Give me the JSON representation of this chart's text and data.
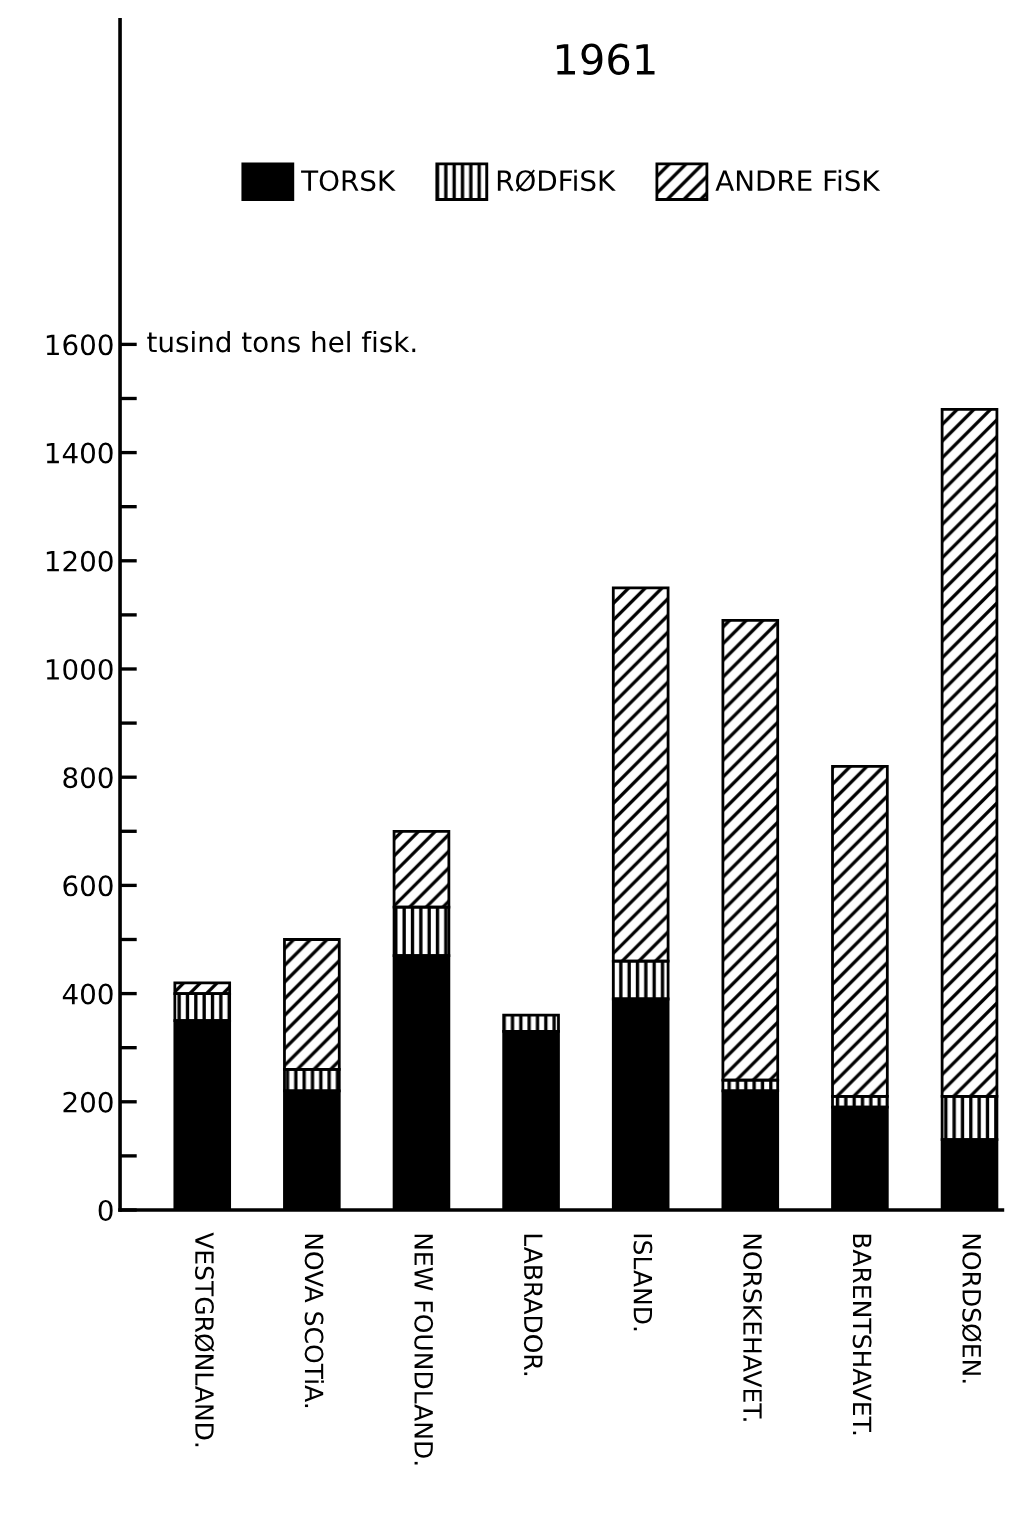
{
  "chart_data": {
    "type": "bar",
    "title": "1961",
    "ylabel": "tusind tons hel fisk.",
    "stacked": true,
    "legend": "top",
    "grid": false,
    "categories": [
      "VESTGRØNLAND.",
      "NOVA SCOTiA.",
      "NEW FOUNDLAND.",
      "LABRADOR.",
      "ISLAND.",
      "NORSKEHAVET.",
      "BARENTSHAVET.",
      "NORDSØEN."
    ],
    "series": [
      {
        "name": "TORSK",
        "color": "#000000",
        "values": [
          350,
          220,
          470,
          330,
          390,
          220,
          190,
          130
        ]
      },
      {
        "name": "RØDFiSK",
        "color": "#000000",
        "values": [
          50,
          40,
          90,
          30,
          70,
          20,
          20,
          80
        ]
      },
      {
        "name": "ANDRE FiSK",
        "color": "#000000",
        "values": [
          20,
          240,
          140,
          null,
          690,
          850,
          610,
          1270
        ]
      }
    ],
    "ylim": [
      0,
      2200
    ],
    "yticks": [
      0,
      {
        "value": 100,
        "label": null
      },
      200,
      {
        "value": 300,
        "label": null
      },
      400,
      {
        "value": 500,
        "label": null
      },
      600,
      {
        "value": 700,
        "label": null
      },
      800,
      {
        "value": 900,
        "label": null
      },
      1000,
      {
        "value": 1100,
        "label": null
      },
      1200,
      {
        "value": 1300,
        "label": null
      },
      1400,
      {
        "value": 1500,
        "label": null
      },
      1600
    ]
  }
}
